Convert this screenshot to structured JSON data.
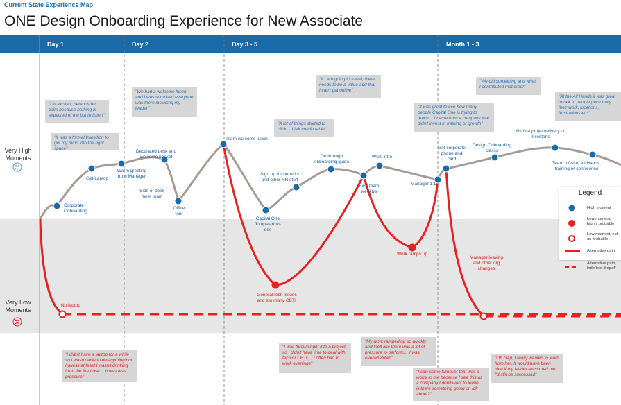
{
  "header": {
    "top_label": "Current State  Experience Map",
    "title": "ONE Design Onboarding Experience for New Associate"
  },
  "columns": [
    "Day 1",
    "Day 2",
    "Day 3 - 5",
    "Month 1 - 3"
  ],
  "axis": {
    "high": "Very High Moments",
    "low": "Very Low Moments",
    "high_icon": "smiley-face-icon",
    "low_icon": "sad-face-icon"
  },
  "colors": {
    "blue": "#1b6aa8",
    "red": "#e02020",
    "gray_line": "#a59a96",
    "band": "#e6e6e6"
  },
  "high_moments": [
    {
      "id": "hm1",
      "label": "Corporate Onboarding"
    },
    {
      "id": "hm2",
      "label": "Get Laptop"
    },
    {
      "id": "hm3",
      "label": "Warm greeting from Manager"
    },
    {
      "id": "hm4",
      "label": "Decorated desk and welcome basket"
    },
    {
      "id": "hm5",
      "label": "Side of desk meet team"
    },
    {
      "id": "hm6",
      "label": "Office tour"
    },
    {
      "id": "hm7",
      "label": "Team welcome lunch"
    },
    {
      "id": "hm8",
      "label": "Capital One Jumpstart to-dos"
    },
    {
      "id": "hm9",
      "label": "Sign up for benefits and other HR stuff"
    },
    {
      "id": "hm10",
      "label": "Go through onboarding guide"
    },
    {
      "id": "hm11",
      "label": "First team weeklys"
    },
    {
      "id": "hm12",
      "label": "WUT intro"
    },
    {
      "id": "hm13",
      "label": "Manager 1:1"
    },
    {
      "id": "hm14",
      "label": "Get corporate phone and card"
    },
    {
      "id": "hm15",
      "label": "Design Onboarding classs"
    },
    {
      "id": "hm16",
      "label": "Hit first projet delivery or milestone"
    },
    {
      "id": "hm17",
      "label": "Team off-site, All Hands, training or conference"
    }
  ],
  "low_moments": [
    {
      "id": "lm1",
      "label": "No laptop",
      "type": "not-probable"
    },
    {
      "id": "lm2",
      "label": "General tech issues and too many CBTs",
      "type": "probable"
    },
    {
      "id": "lm3",
      "label": "Work ramps up",
      "type": "probable"
    },
    {
      "id": "lm4",
      "label": "Manager leaving and other org changes",
      "type": "not-probable"
    }
  ],
  "callouts_top": [
    "\"I'm excited, nervous but calm because nothing is expected of me but to listen\"",
    "\"It was a formal transition to get my mind into the right space\"",
    "\"We had a welcome lunch and I was surprised everyone was there including my leader!\"",
    "\"If I am going to travel, there needs to be a value-add that I can't get online\"",
    "\"A lot of things started to click… I felt comfortable\"",
    "\"We did something and what I contributed mattered!\"",
    "\"It was great to see how many people Capital One is trying to teach… I came from a company that didn't invest in training or growth\"",
    "\"At the All Hands it was great to talk to people personally… their work, locations, frustrations etc\""
  ],
  "callouts_bottom": [
    "\"I didn't have a laptop for a while so I wasn't able to do anything but I guess at least I wasn't drinking from the fire hose… it was less pressure\"",
    "\"I was thrown right into a project so I didn't have time to deal with tech or CBTs… I often had to work evenings\"",
    "\"My work ramped up so quickly and I felt like there was a lot of pressure to perform… I was overwhelmed\"",
    "\"I saw some turnover that was a worry to me because I see this as a company I don't want to leave… is there something going on idk about?\"",
    "\"Oh crap, I really wanted to learn from her. It would have been nice if my leader reassured me I'd still be successful\""
  ],
  "legend": {
    "title": "Legend",
    "items": [
      "High moment",
      "Low moment, highly probable",
      "Low moment, not as probable",
      "Alternative path",
      "Alternative path, indefiete dropoff"
    ]
  }
}
